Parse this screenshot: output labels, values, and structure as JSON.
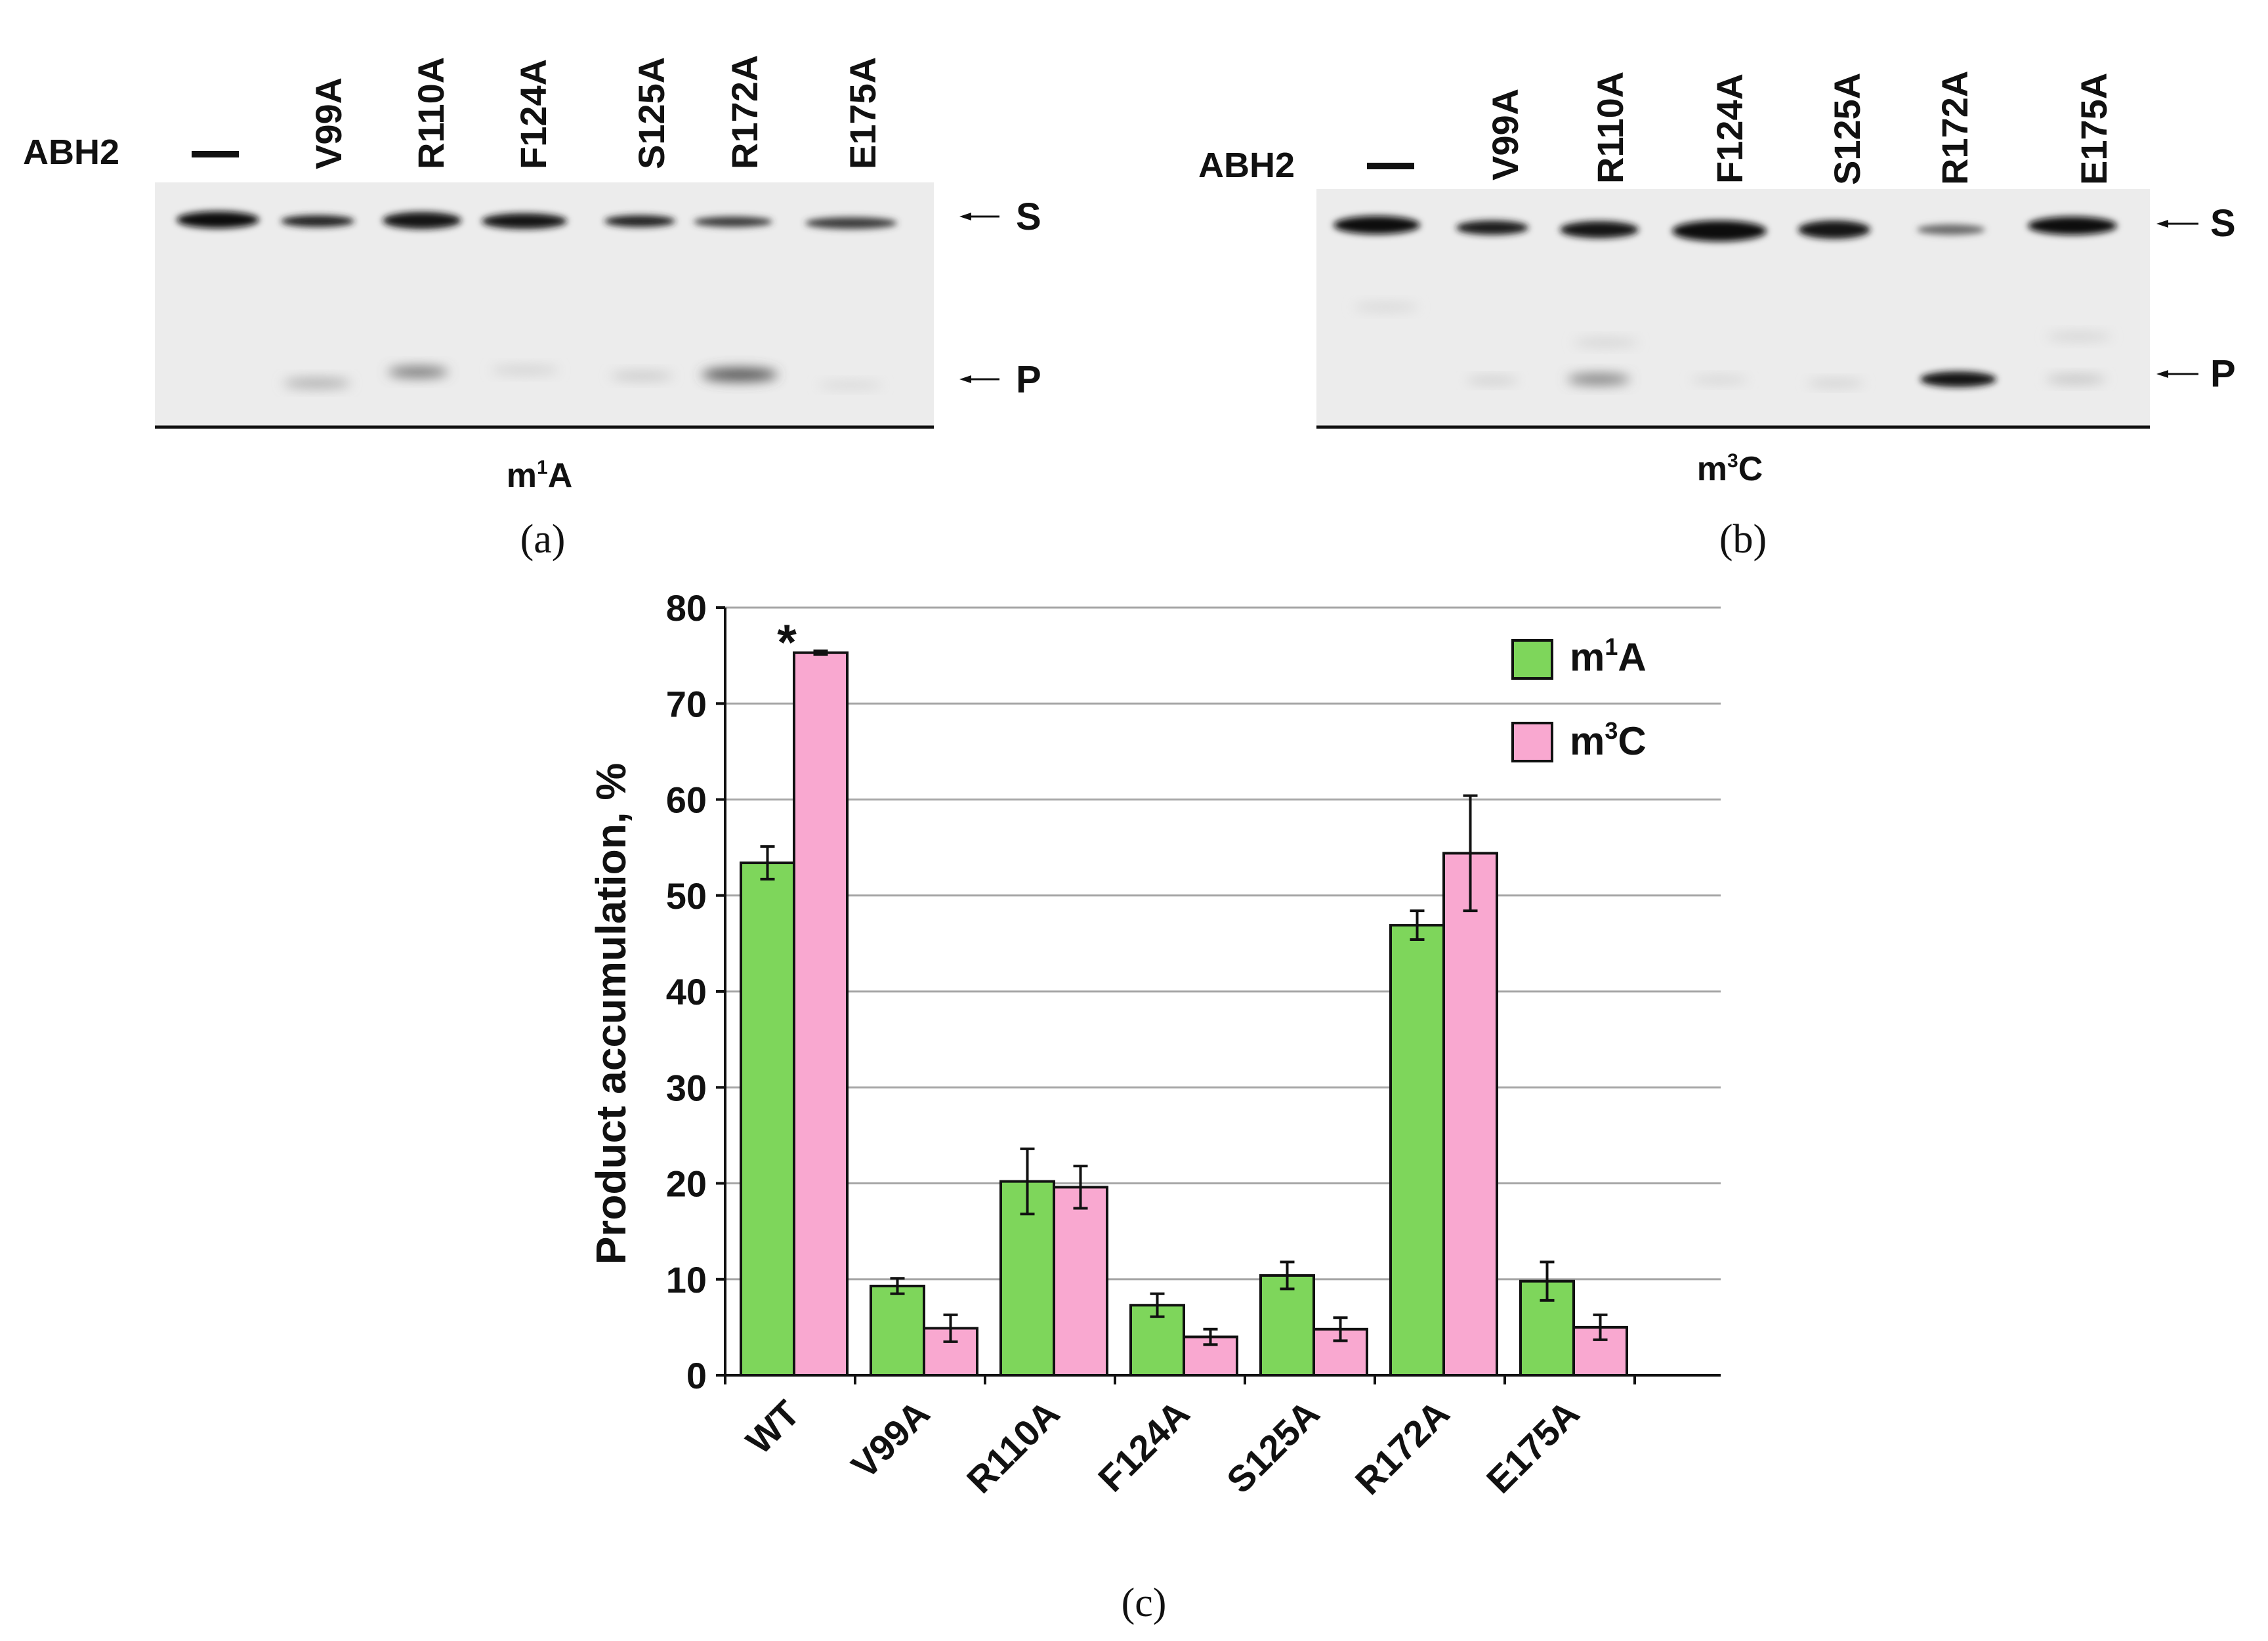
{
  "panel_a": {
    "row_label": "ABH2",
    "lanes": [
      "—",
      "V99A",
      "R110A",
      "F124A",
      "S125A",
      "R172A",
      "E175A"
    ],
    "band_s": "S",
    "band_p": "P",
    "substrate_main": "m",
    "substrate_sup": "1",
    "substrate_end": "A",
    "caption": "(a)"
  },
  "panel_b": {
    "row_label": "ABH2",
    "lanes": [
      "—",
      "V99A",
      "R110A",
      "F124A",
      "S125A",
      "R172A",
      "E175A"
    ],
    "band_s": "S",
    "band_p": "P",
    "substrate_main": "m",
    "substrate_sup": "3",
    "substrate_end": "C",
    "caption": "(b)"
  },
  "chart_data": {
    "type": "bar",
    "title": "",
    "ylabel": "Product accumulation, %",
    "xlabel": "",
    "ylim": [
      0,
      80
    ],
    "yticks": [
      "0",
      "10",
      "20",
      "30",
      "40",
      "50",
      "60",
      "70",
      "80"
    ],
    "categories": [
      "WT",
      "V99A",
      "R110A",
      "F124A",
      "S125A",
      "R172A",
      "E175A"
    ],
    "series": [
      {
        "name": "m1A",
        "label_main": "m",
        "label_sup": "1",
        "label_end": "A",
        "color": "#7ed65b",
        "values": [
          53.4,
          9.3,
          20.2,
          7.3,
          10.4,
          46.9,
          9.8
        ],
        "errors": [
          1.7,
          0.8,
          3.4,
          1.2,
          1.4,
          1.5,
          2.0
        ]
      },
      {
        "name": "m3C",
        "label_main": "m",
        "label_sup": "3",
        "label_end": "C",
        "color": "#f9a8d0",
        "values": [
          75.3,
          4.9,
          19.6,
          4.0,
          4.8,
          54.4,
          5.0
        ],
        "errors": [
          0.2,
          1.4,
          2.2,
          0.8,
          1.2,
          6.0,
          1.3
        ]
      }
    ],
    "annotation": "*",
    "legend_position": "top-right",
    "caption": "(c)"
  }
}
